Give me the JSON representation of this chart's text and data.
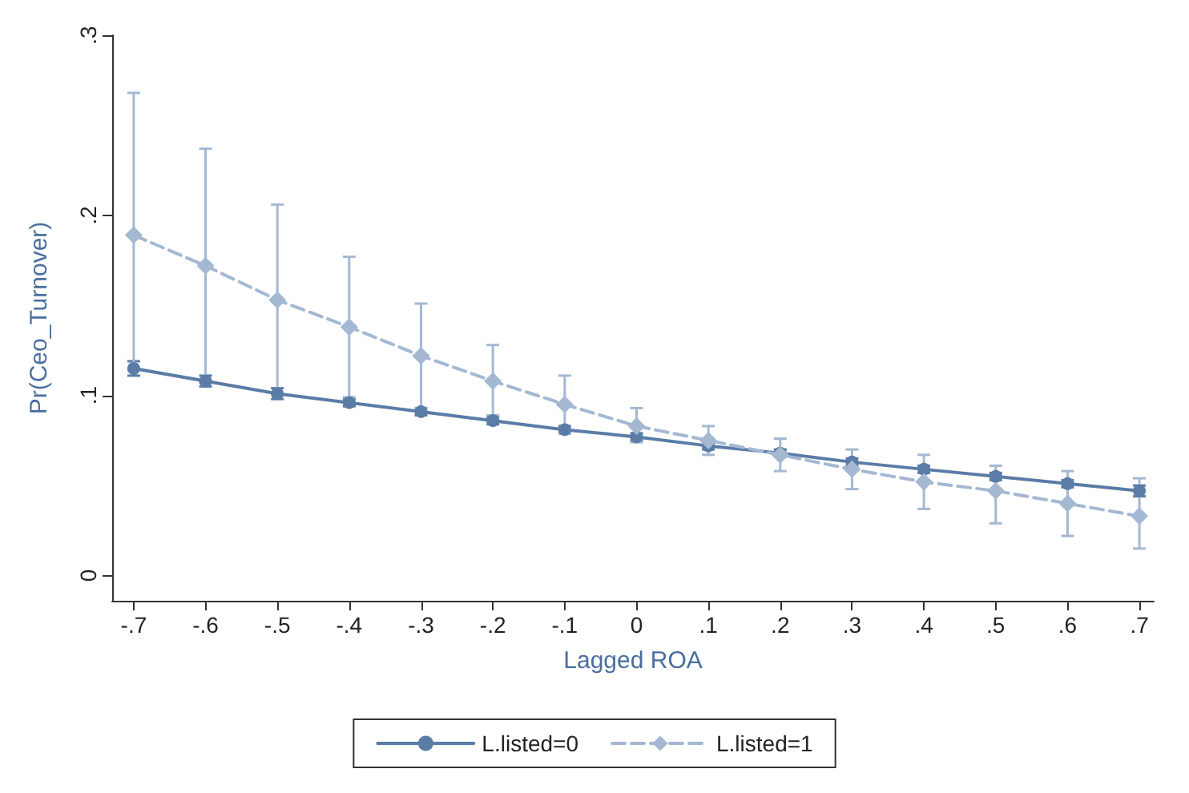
{
  "chart_data": {
    "type": "line",
    "xlabel": "Lagged ROA",
    "ylabel": "Pr(Ceo_Turnover)",
    "x": [
      -0.7,
      -0.6,
      -0.5,
      -0.4,
      -0.3,
      -0.2,
      -0.1,
      0,
      0.1,
      0.2,
      0.3,
      0.4,
      0.5,
      0.6,
      0.7
    ],
    "series": [
      {
        "name": "L.listed=0",
        "color": "#5a7ca6",
        "marker": "circle",
        "line_style": "solid",
        "values": [
          0.115,
          0.108,
          0.101,
          0.096,
          0.091,
          0.086,
          0.081,
          0.077,
          0.072,
          0.068,
          0.063,
          0.059,
          0.055,
          0.051,
          0.047
        ],
        "errors": [
          0.004,
          0.003,
          0.003,
          0.002,
          0.002,
          0.002,
          0.002,
          0.002,
          0.002,
          0.002,
          0.002,
          0.002,
          0.002,
          0.002,
          0.003
        ]
      },
      {
        "name": "L.listed=1",
        "color": "#a4b8d2",
        "marker": "diamond",
        "line_style": "dashed",
        "values": [
          0.189,
          0.172,
          0.153,
          0.138,
          0.122,
          0.108,
          0.095,
          0.083,
          0.075,
          0.067,
          0.059,
          0.052,
          0.047,
          0.04,
          0.033
        ],
        "errors": [
          [
            0.114,
            0.268
          ],
          [
            0.107,
            0.237
          ],
          [
            0.101,
            0.206
          ],
          [
            0.099,
            0.177
          ],
          [
            0.093,
            0.151
          ],
          [
            0.089,
            0.128
          ],
          [
            0.079,
            0.111
          ],
          [
            0.074,
            0.093
          ],
          [
            0.067,
            0.083
          ],
          [
            0.058,
            0.076
          ],
          [
            0.048,
            0.07
          ],
          [
            0.037,
            0.067
          ],
          [
            0.029,
            0.061
          ],
          [
            0.022,
            0.058
          ],
          [
            0.015,
            0.054
          ]
        ]
      }
    ],
    "xlim": [
      -0.73,
      0.72
    ],
    "xticks": [
      {
        "value": -0.7,
        "label": "-.7"
      },
      {
        "value": -0.6,
        "label": "-.6"
      },
      {
        "value": -0.5,
        "label": "-.5"
      },
      {
        "value": -0.4,
        "label": "-.4"
      },
      {
        "value": -0.3,
        "label": "-.3"
      },
      {
        "value": -0.2,
        "label": "-.2"
      },
      {
        "value": -0.1,
        "label": "-.1"
      },
      0,
      {
        "value": 0.1,
        "label": ".1"
      },
      {
        "value": 0.2,
        "label": ".2"
      },
      {
        "value": 0.3,
        "label": ".3"
      },
      {
        "value": 0.4,
        "label": ".4"
      },
      {
        "value": 0.5,
        "label": ".5"
      },
      {
        "value": 0.6,
        "label": ".6"
      },
      {
        "value": 0.7,
        "label": ".7"
      }
    ],
    "ylim": [
      -0.014,
      0.3
    ],
    "yticks": [
      0,
      {
        "value": 0.1,
        "label": ".1"
      },
      {
        "value": 0.2,
        "label": ".2"
      },
      {
        "value": 0.3,
        "label": ".3"
      }
    ],
    "grid": false,
    "legend": "bottom"
  }
}
